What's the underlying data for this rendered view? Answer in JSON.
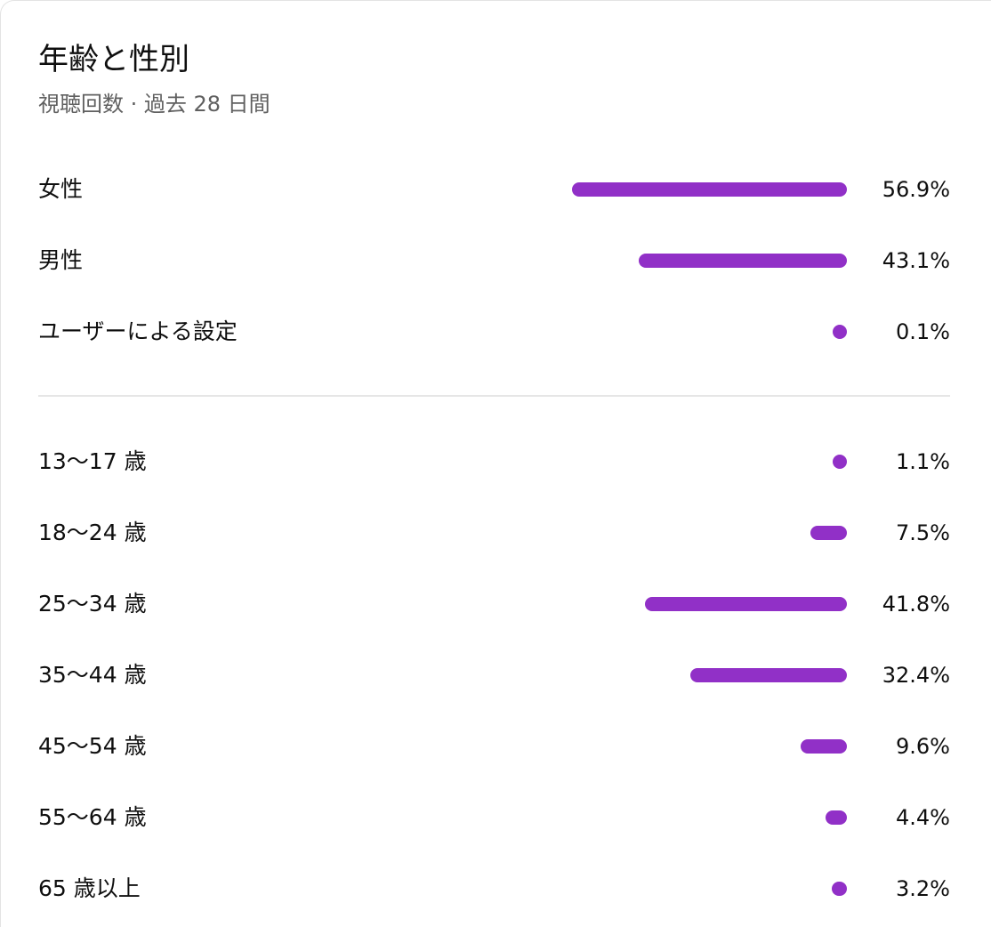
{
  "chart": {
    "title": "年齢と性別",
    "subtitle": "視聴回数 · 過去 28 日間"
  },
  "colors": {
    "bar": "#9130c7"
  },
  "chart_data": [
    {
      "type": "bar",
      "title": "年齢と性別",
      "subtitle": "視聴回数 · 過去 28 日間",
      "orientation": "horizontal",
      "categories": [
        "女性",
        "男性",
        "ユーザーによる設定"
      ],
      "values": [
        56.9,
        43.1,
        0.1
      ],
      "value_labels": [
        "56.9%",
        "43.1%",
        "0.1%"
      ],
      "unit": "%",
      "xlim": [
        0,
        56.9
      ],
      "grid": false
    },
    {
      "type": "bar",
      "orientation": "horizontal",
      "categories": [
        "13〜17 歳",
        "18〜24 歳",
        "25〜34 歳",
        "35〜44 歳",
        "45〜54 歳",
        "55〜64 歳",
        "65 歳以上"
      ],
      "values": [
        1.1,
        7.5,
        41.8,
        32.4,
        9.6,
        4.4,
        3.2
      ],
      "value_labels": [
        "1.1%",
        "7.5%",
        "41.8%",
        "32.4%",
        "9.6%",
        "4.4%",
        "3.2%"
      ],
      "unit": "%",
      "xlim": [
        0,
        56.9
      ],
      "grid": false
    }
  ]
}
